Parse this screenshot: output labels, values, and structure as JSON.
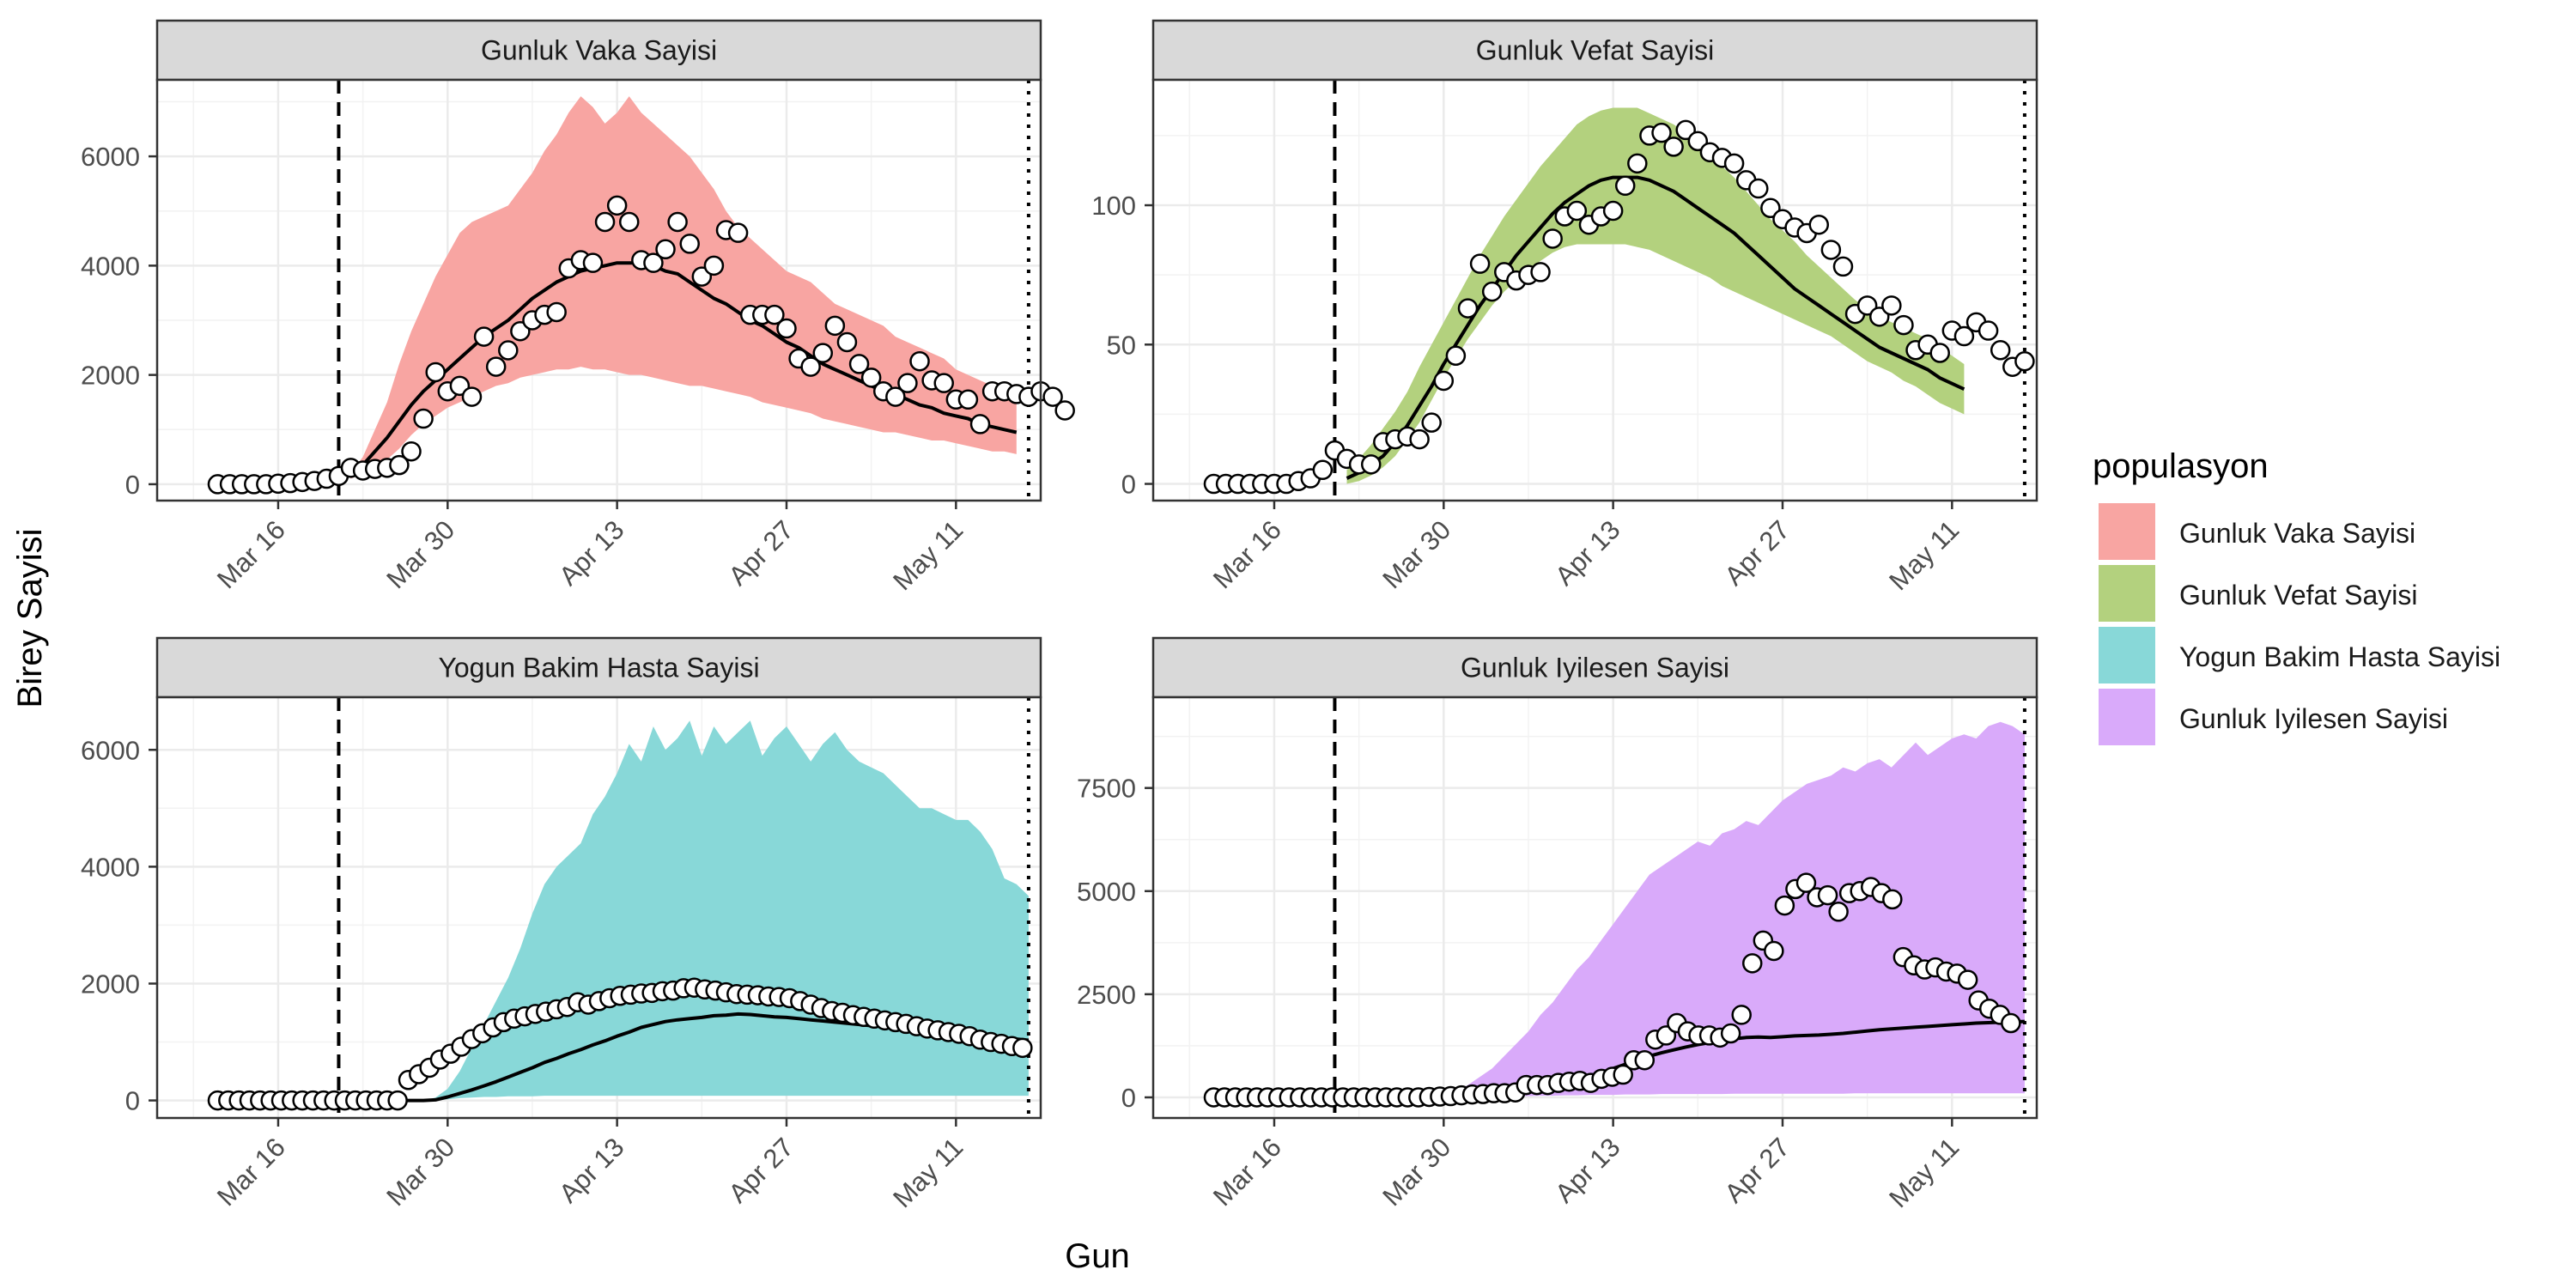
{
  "figure": {
    "ylabel": "Birey Sayisi",
    "xlabel": "Gun",
    "legend": {
      "title": "populasyon",
      "placement": "right",
      "items": [
        {
          "label": "Gunluk Vaka Sayisi",
          "color": "#F8A5A2"
        },
        {
          "label": "Gunluk Vefat Sayisi",
          "color": "#B3D17E"
        },
        {
          "label": "Yogun Bakim Hasta Sayisi",
          "color": "#88D8D8"
        },
        {
          "label": "Gunluk Iyilesen Sayisi",
          "color": "#D9AAFA"
        }
      ]
    }
  },
  "chart_data": [
    {
      "type": "area",
      "title": "Gunluk Vaka Sayisi",
      "fill": "#F8A5A2",
      "xlim": [
        -5,
        68
      ],
      "ylim": [
        -300,
        7400
      ],
      "yticks": [
        0,
        2000,
        4000,
        6000
      ],
      "xticks": [
        {
          "t": 5,
          "label": "Mar 16"
        },
        {
          "t": 19,
          "label": "Mar 30"
        },
        {
          "t": 33,
          "label": "Apr 13"
        },
        {
          "t": 47,
          "label": "Apr 27"
        },
        {
          "t": 61,
          "label": "May 11"
        }
      ],
      "vline_dashed": 10,
      "vline_dotted": 67,
      "points_start": 0,
      "points": [
        0,
        0,
        0,
        0,
        0,
        10,
        20,
        40,
        60,
        100,
        150,
        300,
        250,
        280,
        300,
        350,
        600,
        1200,
        2050,
        1700,
        1800,
        1600,
        2700,
        2150,
        2450,
        2800,
        3000,
        3100,
        3150,
        3950,
        4100,
        4050,
        4800,
        5100,
        4800,
        4100,
        4050,
        4300,
        4800,
        4400,
        3800,
        4000,
        4650,
        4600,
        3100,
        3100,
        3100,
        2850,
        2300,
        2150,
        2400,
        2900,
        2600,
        2200,
        1950,
        1700,
        1600,
        1850,
        2250,
        1900,
        1850,
        1550,
        1550,
        1100,
        1700,
        1700,
        1650,
        1600,
        1700,
        1600,
        1350
      ],
      "band_start": 11,
      "lower": [
        100,
        200,
        300,
        450,
        650,
        900,
        1100,
        1250,
        1400,
        1500,
        1600,
        1700,
        1800,
        1850,
        1950,
        2000,
        2050,
        2100,
        2100,
        2150,
        2100,
        2100,
        2050,
        2000,
        2000,
        1950,
        1900,
        1850,
        1800,
        1800,
        1750,
        1700,
        1650,
        1600,
        1500,
        1450,
        1400,
        1350,
        1300,
        1200,
        1150,
        1100,
        1050,
        1000,
        950,
        950,
        900,
        850,
        800,
        800,
        750,
        700,
        650,
        600,
        600,
        550
      ],
      "upper": [
        200,
        500,
        1000,
        1500,
        2200,
        2800,
        3300,
        3800,
        4200,
        4600,
        4800,
        4900,
        5000,
        5100,
        5400,
        5700,
        6100,
        6400,
        6800,
        7100,
        6900,
        6600,
        6800,
        7100,
        6800,
        6600,
        6400,
        6200,
        6000,
        5700,
        5400,
        5000,
        4700,
        4500,
        4300,
        4100,
        3900,
        3800,
        3700,
        3500,
        3300,
        3200,
        3100,
        3000,
        2900,
        2700,
        2600,
        2500,
        2400,
        2300,
        2100,
        2000,
        1900,
        1800,
        1700,
        1600
      ],
      "median": [
        150,
        350,
        600,
        850,
        1150,
        1450,
        1700,
        1900,
        2100,
        2300,
        2500,
        2700,
        2850,
        3000,
        3200,
        3400,
        3550,
        3700,
        3800,
        3900,
        3950,
        4000,
        4050,
        4050,
        4050,
        4000,
        3900,
        3850,
        3700,
        3550,
        3400,
        3300,
        3150,
        3000,
        2900,
        2750,
        2600,
        2500,
        2350,
        2200,
        2100,
        2000,
        1900,
        1800,
        1700,
        1650,
        1550,
        1450,
        1400,
        1300,
        1250,
        1200,
        1100,
        1050,
        1000,
        950
      ]
    },
    {
      "type": "area",
      "title": "Gunluk Vefat Sayisi",
      "fill": "#B3D17E",
      "xlim": [
        -5,
        68
      ],
      "ylim": [
        -6,
        145
      ],
      "yticks": [
        0,
        50,
        100
      ],
      "xticks": [
        {
          "t": 5,
          "label": "Mar 16"
        },
        {
          "t": 19,
          "label": "Mar 30"
        },
        {
          "t": 33,
          "label": "Apr 13"
        },
        {
          "t": 47,
          "label": "Apr 27"
        },
        {
          "t": 61,
          "label": "May 11"
        }
      ],
      "vline_dashed": 10,
      "vline_dotted": 67,
      "points_start": 0,
      "points": [
        0,
        0,
        0,
        0,
        0,
        0,
        0,
        1,
        2,
        5,
        12,
        9,
        7,
        7,
        15,
        16,
        17,
        16,
        22,
        37,
        46,
        63,
        79,
        69,
        76,
        73,
        75,
        76,
        88,
        96,
        98,
        93,
        96,
        98,
        107,
        115,
        125,
        126,
        121,
        127,
        123,
        119,
        117,
        115,
        109,
        106,
        99,
        95,
        92,
        90,
        93,
        84,
        78,
        61,
        64,
        60,
        64,
        57,
        48,
        50,
        47,
        55,
        53,
        58,
        55,
        48,
        42,
        44
      ],
      "band_start": 11,
      "lower": [
        0,
        1,
        3,
        6,
        10,
        16,
        22,
        30,
        38,
        45,
        52,
        58,
        64,
        69,
        73,
        77,
        80,
        83,
        85,
        86,
        86,
        86,
        86,
        86,
        85,
        84,
        82,
        80,
        78,
        76,
        74,
        71,
        69,
        67,
        65,
        63,
        61,
        59,
        57,
        55,
        53,
        50,
        47,
        44,
        42,
        40,
        37,
        35,
        32,
        29,
        27,
        25
      ],
      "upper": [
        5,
        9,
        14,
        20,
        26,
        33,
        42,
        50,
        58,
        66,
        74,
        82,
        89,
        96,
        102,
        108,
        114,
        119,
        124,
        129,
        132,
        134,
        135,
        135,
        135,
        133,
        131,
        129,
        126,
        122,
        118,
        114,
        110,
        105,
        100,
        95,
        91,
        87,
        82,
        78,
        74,
        70,
        66,
        63,
        60,
        58,
        56,
        54,
        52,
        49,
        46,
        43
      ],
      "median": [
        2,
        4,
        7,
        10,
        15,
        21,
        28,
        35,
        43,
        50,
        57,
        64,
        70,
        76,
        82,
        87,
        92,
        97,
        101,
        104,
        107,
        109,
        110,
        110,
        110,
        109,
        107,
        105,
        102,
        99,
        96,
        93,
        90,
        86,
        82,
        78,
        74,
        70,
        67,
        64,
        61,
        58,
        55,
        52,
        49,
        47,
        45,
        43,
        41,
        38,
        36,
        34
      ]
    },
    {
      "type": "area",
      "title": "Yogun Bakim Hasta Sayisi",
      "fill": "#88D8D8",
      "xlim": [
        -5,
        68
      ],
      "ylim": [
        -300,
        6900
      ],
      "yticks": [
        0,
        2000,
        4000,
        6000
      ],
      "xticks": [
        {
          "t": 5,
          "label": "Mar 16"
        },
        {
          "t": 19,
          "label": "Mar 30"
        },
        {
          "t": 33,
          "label": "Apr 13"
        },
        {
          "t": 47,
          "label": "Apr 27"
        },
        {
          "t": 61,
          "label": "May 11"
        }
      ],
      "vline_dashed": 10,
      "vline_dotted": 67,
      "points_start": 0,
      "points": [
        0,
        0,
        0,
        0,
        0,
        0,
        0,
        0,
        0,
        0,
        0,
        0,
        0,
        0,
        0,
        0,
        0,
        0,
        350,
        450,
        560,
        700,
        800,
        920,
        1050,
        1150,
        1250,
        1340,
        1400,
        1440,
        1480,
        1520,
        1560,
        1600,
        1680,
        1640,
        1700,
        1750,
        1790,
        1810,
        1830,
        1840,
        1870,
        1880,
        1920,
        1930,
        1900,
        1880,
        1850,
        1820,
        1810,
        1800,
        1780,
        1770,
        1750,
        1700,
        1640,
        1580,
        1530,
        1500,
        1460,
        1430,
        1400,
        1370,
        1340,
        1310,
        1270,
        1230,
        1200,
        1170,
        1140,
        1100,
        1040,
        1000,
        970,
        930,
        900
      ],
      "points_step": 0.875,
      "band_start": 11,
      "lower": [
        0,
        0,
        0,
        0,
        0,
        0,
        0,
        0,
        20,
        40,
        50,
        60,
        60,
        70,
        70,
        70,
        80,
        80,
        80,
        80,
        80,
        80,
        80,
        80,
        80,
        80,
        80,
        80,
        80,
        80,
        80,
        80,
        80,
        80,
        80,
        80,
        80,
        80,
        80,
        80,
        80,
        80,
        80,
        80,
        80,
        80,
        80,
        80,
        80,
        80,
        80,
        80,
        80,
        80,
        80,
        80,
        80
      ],
      "upper": [
        0,
        0,
        0,
        0,
        0,
        0,
        0,
        50,
        200,
        500,
        900,
        1300,
        1700,
        2100,
        2600,
        3200,
        3700,
        4000,
        4200,
        4400,
        4900,
        5200,
        5600,
        6100,
        5800,
        6400,
        6000,
        6200,
        6500,
        5900,
        6400,
        6100,
        6300,
        6500,
        5900,
        6200,
        6400,
        6100,
        5800,
        6100,
        6300,
        6000,
        5800,
        5700,
        5600,
        5400,
        5200,
        5000,
        5000,
        4900,
        4800,
        4800,
        4600,
        4300,
        3800,
        3700,
        3500
      ],
      "median": [
        0,
        0,
        0,
        0,
        0,
        0,
        0,
        10,
        60,
        120,
        180,
        250,
        320,
        400,
        480,
        560,
        650,
        720,
        800,
        870,
        950,
        1020,
        1100,
        1170,
        1250,
        1300,
        1350,
        1380,
        1400,
        1420,
        1450,
        1460,
        1480,
        1470,
        1450,
        1430,
        1420,
        1400,
        1380,
        1360,
        1340,
        1320,
        1300,
        1280,
        1270,
        1250,
        1230,
        1210,
        1190,
        1170,
        1150,
        1130,
        1110,
        1090,
        1070,
        1050,
        1030
      ]
    },
    {
      "type": "area",
      "title": "Gunluk Iyilesen Sayisi",
      "fill": "#D9AAFA",
      "xlim": [
        -5,
        68
      ],
      "ylim": [
        -500,
        9700
      ],
      "yticks": [
        0,
        2500,
        5000,
        7500
      ],
      "xticks": [
        {
          "t": 5,
          "label": "Mar 16"
        },
        {
          "t": 19,
          "label": "Mar 30"
        },
        {
          "t": 33,
          "label": "Apr 13"
        },
        {
          "t": 47,
          "label": "Apr 27"
        },
        {
          "t": 61,
          "label": "May 11"
        }
      ],
      "vline_dashed": 10,
      "vline_dotted": 67,
      "points_start": 0,
      "points": [
        0,
        0,
        0,
        0,
        0,
        0,
        0,
        0,
        0,
        0,
        0,
        0,
        0,
        0,
        0,
        0,
        0,
        0,
        0,
        0,
        10,
        20,
        30,
        50,
        70,
        80,
        100,
        100,
        120,
        300,
        300,
        300,
        350,
        380,
        400,
        350,
        450,
        500,
        550,
        900,
        900,
        1400,
        1500,
        1800,
        1600,
        1500,
        1500,
        1450,
        1550,
        2000,
        3250,
        3800,
        3550,
        4650,
        5050,
        5200,
        4850,
        4900,
        4500,
        4950,
        5000,
        5100,
        4950,
        4800,
        3400,
        3200,
        3100,
        3150,
        3050,
        3000,
        2850,
        2350,
        2150,
        2000,
        1800
      ],
      "points_step": 0.89,
      "band_start": 11,
      "lower": [
        0,
        0,
        0,
        0,
        0,
        0,
        0,
        0,
        0,
        0,
        0,
        0,
        20,
        20,
        30,
        30,
        40,
        40,
        50,
        50,
        60,
        60,
        60,
        70,
        70,
        70,
        80,
        80,
        80,
        80,
        80,
        80,
        90,
        90,
        90,
        90,
        90,
        90,
        90,
        90,
        90,
        90,
        100,
        100,
        100,
        100,
        100,
        100,
        100,
        100,
        100,
        100,
        100,
        100,
        100,
        100,
        100
      ],
      "upper": [
        0,
        0,
        0,
        0,
        0,
        0,
        0,
        0,
        50,
        150,
        300,
        500,
        700,
        1000,
        1300,
        1600,
        2000,
        2300,
        2700,
        3100,
        3400,
        3800,
        4200,
        4600,
        5000,
        5400,
        5600,
        5800,
        6000,
        6200,
        6100,
        6400,
        6500,
        6700,
        6600,
        6900,
        7200,
        7400,
        7600,
        7700,
        7800,
        8000,
        7900,
        8100,
        8200,
        8000,
        8300,
        8600,
        8300,
        8500,
        8700,
        8800,
        8700,
        9000,
        9100,
        9000,
        8800
      ],
      "median": [
        0,
        0,
        0,
        0,
        0,
        0,
        0,
        0,
        0,
        10,
        30,
        50,
        80,
        110,
        150,
        190,
        240,
        300,
        360,
        430,
        510,
        600,
        700,
        800,
        900,
        1000,
        1080,
        1150,
        1220,
        1280,
        1330,
        1380,
        1420,
        1450,
        1460,
        1450,
        1470,
        1490,
        1500,
        1510,
        1530,
        1550,
        1580,
        1610,
        1640,
        1660,
        1680,
        1700,
        1720,
        1740,
        1760,
        1780,
        1800,
        1810,
        1820,
        1830,
        1840
      ]
    }
  ]
}
